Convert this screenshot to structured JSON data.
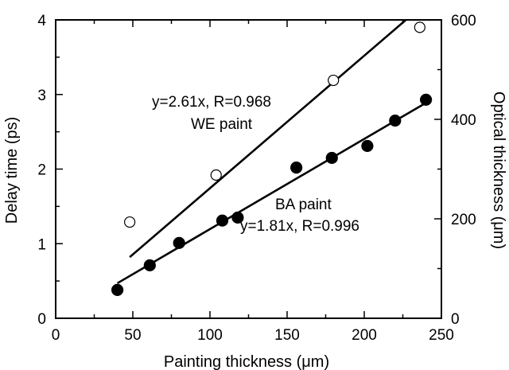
{
  "chart_data": {
    "type": "scatter",
    "title": "",
    "xlabel": "Painting thickness (μm)",
    "ylabel": "Delay time (ps)",
    "y2label": "Optical thickness (μm)",
    "xlim": [
      0,
      250
    ],
    "ylim": [
      0,
      4
    ],
    "y2lim": [
      0,
      600
    ],
    "x_ticks": [
      "0",
      "50",
      "100",
      "150",
      "200",
      "250"
    ],
    "y_ticks": [
      "0",
      "1",
      "2",
      "3",
      "4"
    ],
    "y2_ticks": [
      "0",
      "200",
      "400",
      "600"
    ],
    "grid": false,
    "legend": "none",
    "series": [
      {
        "name": "WE paint",
        "marker": "open-circle",
        "x": [
          48,
          104,
          180,
          236
        ],
        "y": [
          1.29,
          1.92,
          3.19,
          3.9
        ]
      },
      {
        "name": "BA paint",
        "marker": "filled-circle",
        "x": [
          40,
          61,
          80,
          108,
          118,
          156,
          179,
          202,
          220,
          240
        ],
        "y": [
          0.38,
          0.71,
          1.01,
          1.31,
          1.35,
          2.02,
          2.15,
          2.31,
          2.65,
          2.93
        ]
      }
    ],
    "fit_lines": [
      {
        "series": "WE paint",
        "x": [
          48,
          227
        ],
        "y": [
          0.82,
          4.0
        ]
      },
      {
        "series": "BA paint",
        "x": [
          40,
          241
        ],
        "y": [
          0.47,
          2.9
        ]
      }
    ],
    "annotations": {
      "we_eq": "y=2.61x, R=0.968",
      "we_name": "WE paint",
      "ba_name": "BA paint",
      "ba_eq": "y=1.81x, R=0.996"
    }
  }
}
